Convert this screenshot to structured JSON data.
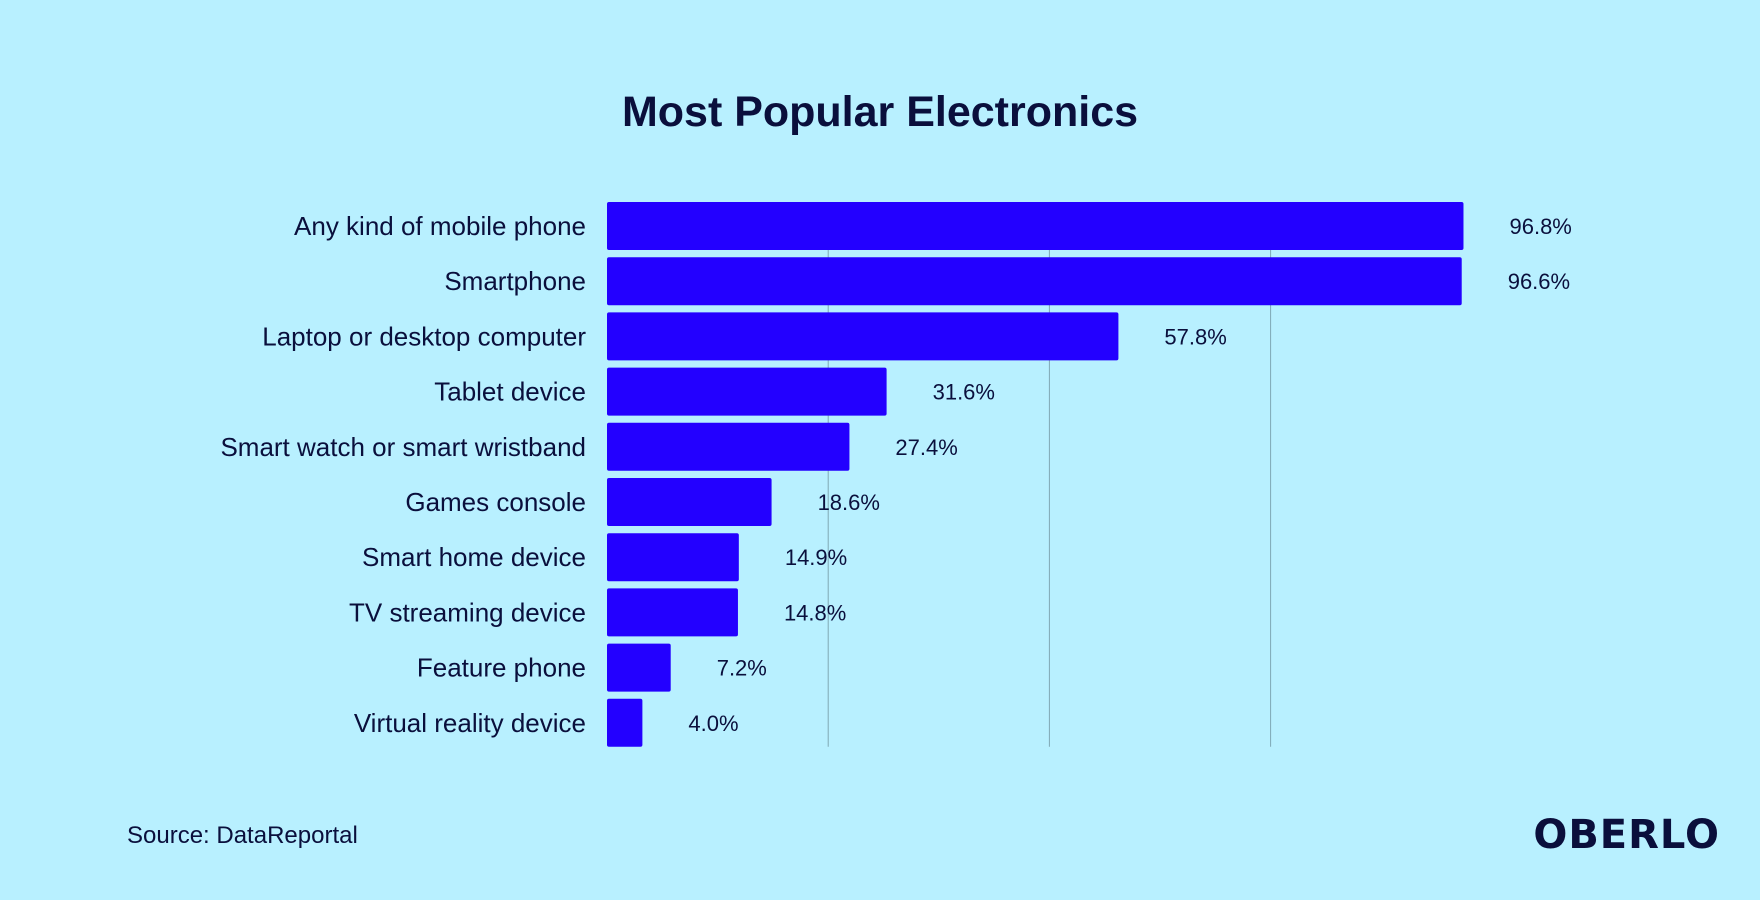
{
  "chart_data": {
    "type": "bar",
    "orientation": "horizontal",
    "title": "Most Popular Electronics",
    "categories": [
      "Any kind of mobile phone",
      "Smartphone",
      "Laptop or desktop computer",
      "Tablet device",
      "Smart watch or smart wristband",
      "Games console",
      "Smart home device",
      "TV streaming device",
      "Feature phone",
      "Virtual reality device"
    ],
    "values": [
      96.8,
      96.6,
      57.8,
      31.6,
      27.4,
      18.6,
      14.9,
      14.8,
      7.2,
      4.0
    ],
    "value_labels": [
      "96.8%",
      "96.6%",
      "57.8%",
      "31.6%",
      "27.4%",
      "18.6%",
      "14.9%",
      "14.8%",
      "7.2%",
      "4.0%"
    ],
    "xlim": [
      0,
      125
    ],
    "gridlines": [
      25,
      50,
      75
    ],
    "grid": true,
    "legend": "none",
    "bar_color": "#2300ff",
    "grid_color": "#7fa8b4"
  },
  "footer": {
    "source": "Source: DataReportal",
    "logo": "OBERLO"
  }
}
